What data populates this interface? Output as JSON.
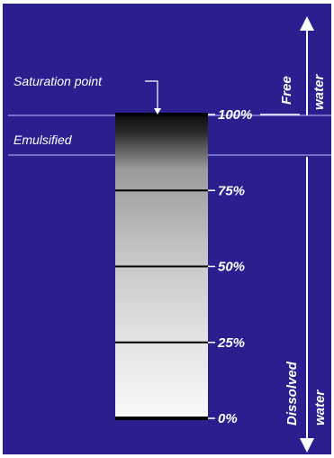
{
  "labels": {
    "saturation_point": "Saturation point",
    "emulsified": "Emulsified",
    "free_water_line1": "Free",
    "free_water_line2": "water",
    "dissolved_water_line1": "Dissolved",
    "dissolved_water_line2": "water"
  },
  "levels": [
    {
      "label": "100%",
      "value": 100
    },
    {
      "label": "75%",
      "value": 75
    },
    {
      "label": "50%",
      "value": 50
    },
    {
      "label": "25%",
      "value": 25
    },
    {
      "label": "0%",
      "value": 0
    }
  ],
  "colors": {
    "background": "#2b1f8f",
    "text": "#ffffff",
    "band_line": "#8e88d8"
  }
}
